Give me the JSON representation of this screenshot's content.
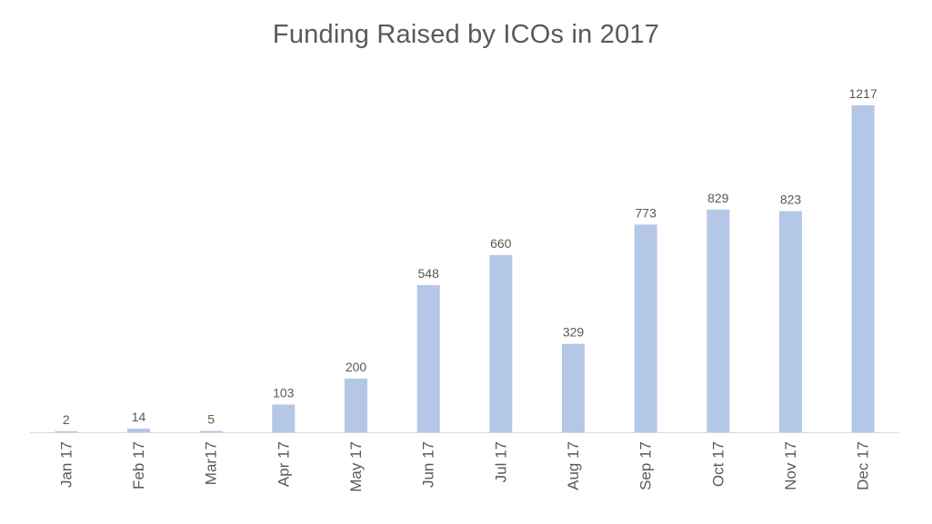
{
  "colors": {
    "bar": "#b4c7e7",
    "axis": "#d9d9d9",
    "text": "#595959"
  },
  "chart_data": {
    "type": "bar",
    "title": "Funding Raised by ICOs in 2017",
    "categories": [
      "Jan 17",
      "Feb 17",
      "Mar17",
      "Apr 17",
      "May 17",
      "Jun 17",
      "Jul 17",
      "Aug 17",
      "Sep 17",
      "Oct 17",
      "Nov 17",
      "Dec 17"
    ],
    "values": [
      2,
      14,
      5,
      103,
      200,
      548,
      660,
      329,
      773,
      829,
      823,
      1217
    ],
    "data_labels": [
      "2",
      "14",
      "5",
      "103",
      "200",
      "548",
      "660",
      "329",
      "773",
      "829",
      "823",
      "1217"
    ],
    "xlabel": "",
    "ylabel": "",
    "ylim": [
      0,
      1217
    ],
    "grid": false,
    "legend": "none"
  }
}
